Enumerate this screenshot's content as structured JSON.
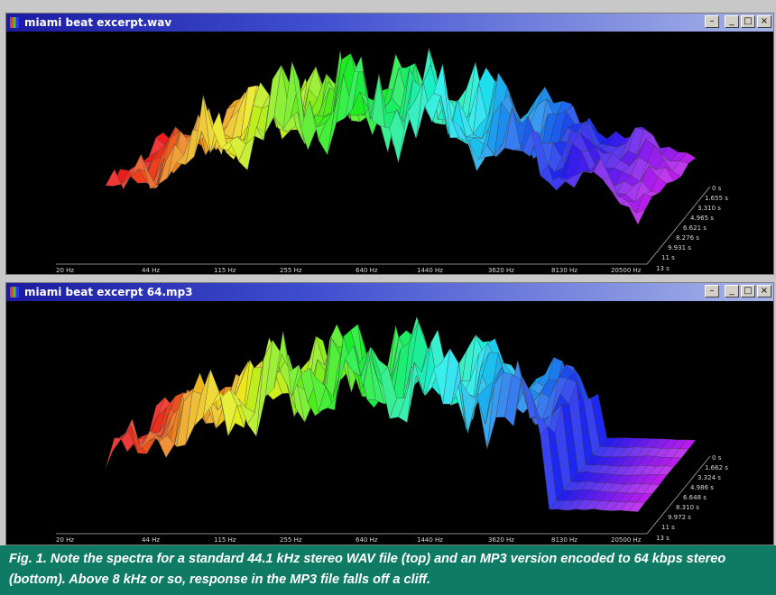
{
  "windows": [
    {
      "title": "miami beat excerpt.wav",
      "buttons": {
        "minimize_extra": "–",
        "minimize": "_",
        "maximize": "□",
        "close": "×"
      },
      "freq_labels": [
        "20 Hz",
        "44 Hz",
        "115 Hz",
        "255 Hz",
        "640 Hz",
        "1440 Hz",
        "3620 Hz",
        "8130 Hz",
        "20500 Hz"
      ],
      "time_labels": [
        "0 s",
        "1.655 s",
        "3.310 s",
        "4.965 s",
        "6.621 s",
        "8.276 s",
        "9.931 s",
        "11 s",
        "13 s"
      ]
    },
    {
      "title": "miami beat excerpt 64.mp3",
      "buttons": {
        "minimize_extra": "–",
        "minimize": "_",
        "maximize": "□",
        "close": "×"
      },
      "freq_labels": [
        "20 Hz",
        "44 Hz",
        "115 Hz",
        "255 Hz",
        "640 Hz",
        "1440 Hz",
        "3620 Hz",
        "8130 Hz",
        "20500 Hz"
      ],
      "time_labels": [
        "0 s",
        "1.662 s",
        "3.324 s",
        "4.986 s",
        "6.648 s",
        "8.310 s",
        "9.972 s",
        "11 s",
        "13 s"
      ]
    }
  ],
  "caption": "Fig. 1. Note the spectra for a standard 44.1 kHz stereo WAV file (top) and an MP3 version encoded to 64 kbps stereo (bottom). Above 8 kHz or so, response in the MP3 file falls off a cliff.",
  "colors": {
    "titlebar_start": "#1a1aa0",
    "caption_bg": "#0f7b64",
    "plot_bg": "#000000"
  }
}
